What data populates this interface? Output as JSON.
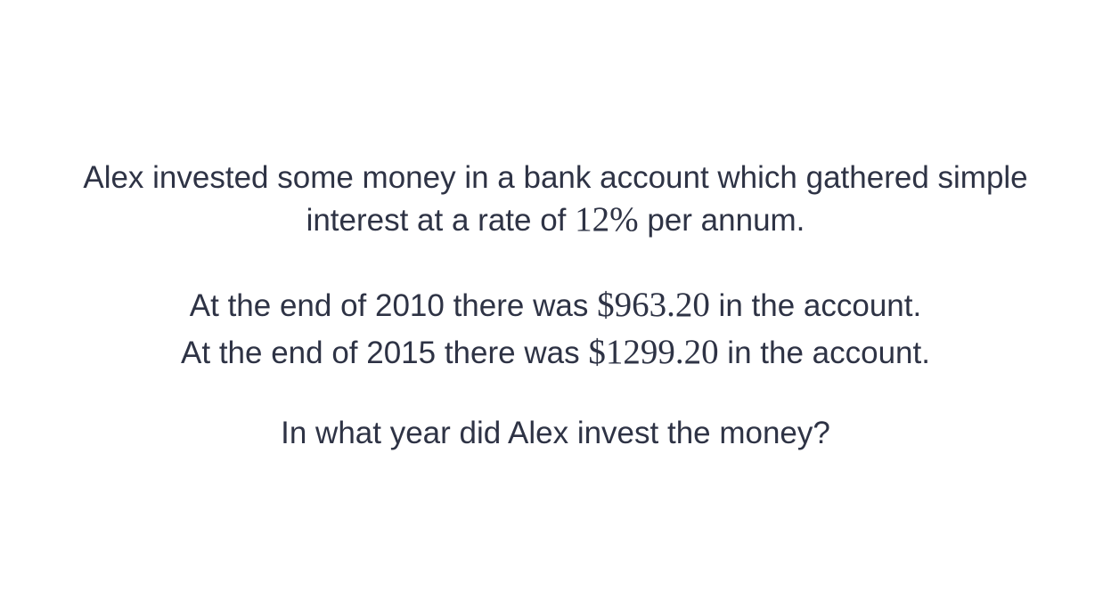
{
  "problem": {
    "intro_line1": "Alex invested some money in a bank account which gathered simple",
    "intro_line2_before": "interest at a rate of",
    "rate": "12%",
    "intro_line2_after": "per annum.",
    "fact1_before": "At the end of 2010 there was",
    "fact1_amount": "$963.20",
    "fact1_after": "in the account.",
    "fact2_before": "At the end of 2015 there was",
    "fact2_amount": "$1299.20",
    "fact2_after": "in the account.",
    "question": "In what year did Alex invest the money?"
  },
  "colors": {
    "text": "#2e3345",
    "background": "#ffffff"
  }
}
